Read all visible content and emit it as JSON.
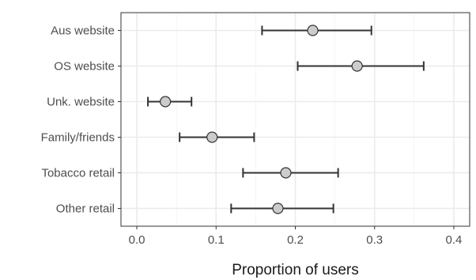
{
  "chart_data": {
    "type": "scatter",
    "subtype": "point-with-error-bars",
    "title": "",
    "xlabel": "Proportion of users",
    "ylabel": "",
    "xlim": [
      -0.02,
      0.42
    ],
    "x_ticks": [
      0.0,
      0.1,
      0.2,
      0.3,
      0.4
    ],
    "x_tick_labels": [
      "0.0",
      "0.1",
      "0.2",
      "0.3",
      "0.4"
    ],
    "grid": true,
    "legend": "none",
    "categories": [
      "Aus website",
      "OS website",
      "Unk. website",
      "Family/friends",
      "Tobacco retail",
      "Other retail"
    ],
    "values": [
      0.222,
      0.278,
      0.036,
      0.095,
      0.188,
      0.178
    ],
    "lower": [
      0.158,
      0.203,
      0.014,
      0.054,
      0.134,
      0.119
    ],
    "upper": [
      0.296,
      0.362,
      0.069,
      0.148,
      0.254,
      0.248
    ],
    "colors": {
      "point_fill": "#cccccc",
      "point_stroke": "#333333",
      "errorbar": "#333333",
      "grid_major": "#ebebeb",
      "grid_minor": "#f5f5f5",
      "panel_border": "#333333"
    }
  }
}
